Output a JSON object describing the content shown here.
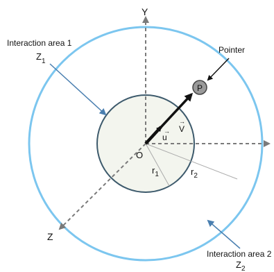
{
  "axes": {
    "y_label": "Y",
    "z_label": "Z",
    "origin_label": "O"
  },
  "vectors": {
    "u_label": "u",
    "v_label": "V"
  },
  "radii": {
    "r1": {
      "base": "r",
      "sub": "1"
    },
    "r2": {
      "base": "r",
      "sub": "2"
    }
  },
  "pointer": {
    "callout": "Pointer",
    "marker": "P"
  },
  "zones": {
    "zone1": {
      "title": "Interaction area 1",
      "symbol": "Z",
      "sub": "1"
    },
    "zone2": {
      "title": "Interaction area 2",
      "symbol": "Z",
      "sub": "2"
    }
  },
  "colors": {
    "outer_ring": "#7cc6ef",
    "inner_circle_fill": "#f3f5ee",
    "inner_circle_stroke": "#3d5a6c",
    "callout_arrow": "#4a7fb0",
    "axis_dash": "#7a7a7a",
    "vector": "#111111",
    "pointer_fill": "#9a9a9a"
  }
}
